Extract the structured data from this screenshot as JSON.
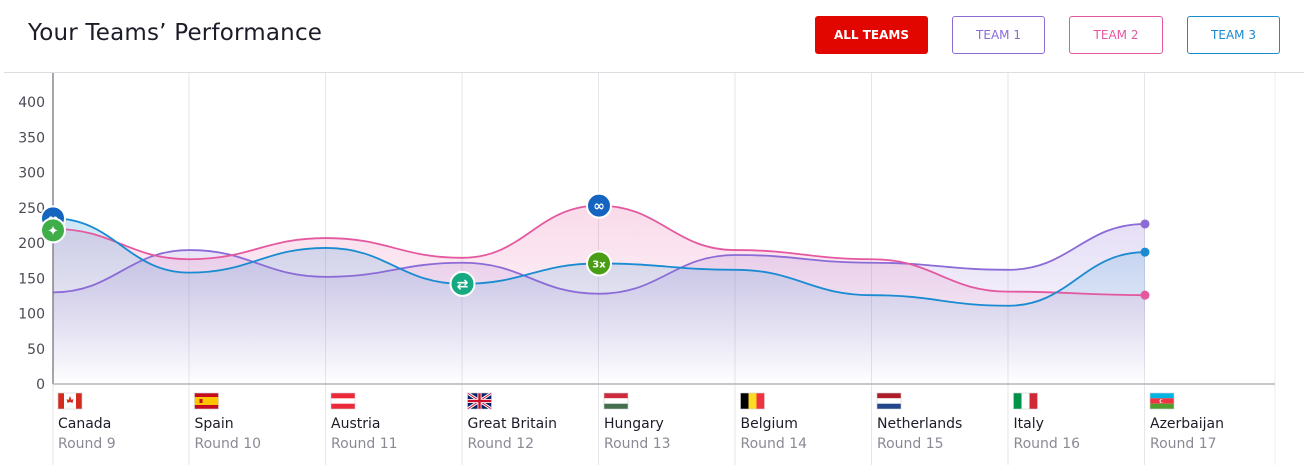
{
  "header": {
    "title": "Your Teams’ Performance",
    "buttons": {
      "all": "ALL TEAMS",
      "team1": "TEAM 1",
      "team2": "TEAM 2",
      "team3": "TEAM 3"
    }
  },
  "colors": {
    "accent": "#e10600",
    "team1": "#8b6bd6",
    "team2": "#e4589f",
    "team3": "#1a8bd1"
  },
  "chart_data": {
    "type": "line",
    "ylim": [
      0,
      400
    ],
    "yticks": [
      0,
      50,
      100,
      150,
      200,
      250,
      300,
      350,
      400
    ],
    "grid": true,
    "categories": [
      {
        "name": "Canada",
        "round": "Round 9",
        "flag": "canada-flag"
      },
      {
        "name": "Spain",
        "round": "Round 10",
        "flag": "spain-flag"
      },
      {
        "name": "Austria",
        "round": "Round 11",
        "flag": "austria-flag"
      },
      {
        "name": "Great Britain",
        "round": "Round 12",
        "flag": "great-britain-flag"
      },
      {
        "name": "Hungary",
        "round": "Round 13",
        "flag": "hungary-flag"
      },
      {
        "name": "Belgium",
        "round": "Round 14",
        "flag": "belgium-flag"
      },
      {
        "name": "Netherlands",
        "round": "Round 15",
        "flag": "netherlands-flag"
      },
      {
        "name": "Italy",
        "round": "Round 16",
        "flag": "italy-flag"
      },
      {
        "name": "Azerbaijan",
        "round": "Round 17",
        "flag": "azerbaijan-flag"
      }
    ],
    "series": [
      {
        "key": "team1",
        "color": "#8b6bd6",
        "values": [
          130,
          190,
          152,
          172,
          128,
          183,
          172,
          162,
          227
        ]
      },
      {
        "key": "team2",
        "color": "#e4589f",
        "values": [
          220,
          177,
          207,
          179,
          253,
          190,
          177,
          131,
          126
        ]
      },
      {
        "key": "team3",
        "color": "#1a8bd1",
        "values": [
          235,
          158,
          193,
          142,
          171,
          162,
          126,
          111,
          187
        ]
      }
    ],
    "chips": [
      {
        "series": "team3",
        "index": 0,
        "icon": "infinity-chip-icon",
        "color": "#1565c0",
        "glyph": "∞"
      },
      {
        "series": "team3",
        "index": 0,
        "icon": "wildcard-chip-icon",
        "color": "#3fae49",
        "glyph": "✦"
      },
      {
        "series": "team3",
        "index": 3,
        "icon": "transfer-chip-icon",
        "color": "#14a980",
        "glyph": "⇄"
      },
      {
        "series": "team2",
        "index": 4,
        "icon": "infinity-chip-icon",
        "color": "#1565c0",
        "glyph": "∞"
      },
      {
        "series": "team3",
        "index": 4,
        "icon": "triple-boost-chip-icon",
        "color": "#4a9e16",
        "glyph": "3x"
      }
    ]
  }
}
